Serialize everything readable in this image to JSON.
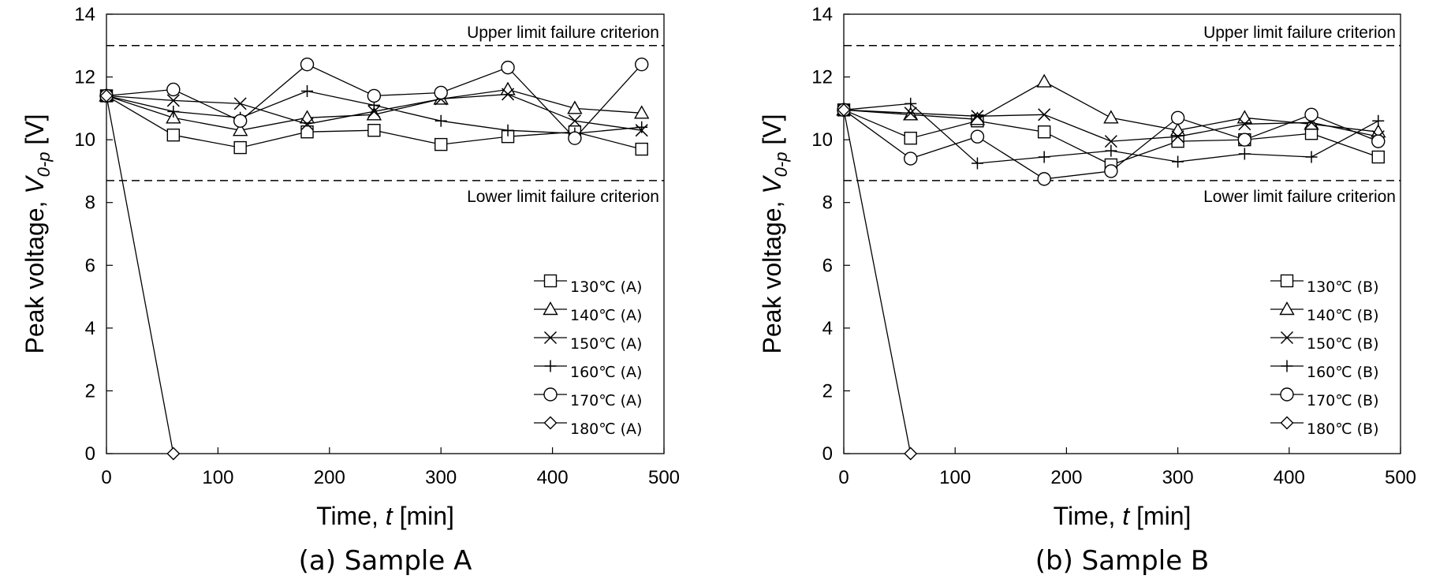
{
  "chart_data": [
    {
      "type": "line",
      "caption": "(a) Sample A",
      "xlabel_prefix": "Time, ",
      "xlabel_var": "t",
      "xlabel_suffix": " [min]",
      "ylabel_prefix": "Peak voltage, ",
      "ylabel_var": "V",
      "ylabel_sub": "0-p",
      "ylabel_suffix": " [V]",
      "xlim": [
        0,
        500
      ],
      "ylim": [
        0,
        14
      ],
      "xticks": [
        0,
        100,
        200,
        300,
        400,
        500
      ],
      "yticks": [
        0,
        2,
        4,
        6,
        8,
        10,
        12,
        14
      ],
      "legend_position": "bottom-right",
      "reference_lines": [
        {
          "y": 13.0,
          "label": "Upper limit failure criterion"
        },
        {
          "y": 8.7,
          "label": "Lower limit failure criterion"
        }
      ],
      "series": [
        {
          "name": "130℃ (A)",
          "marker": "square",
          "x": [
            0,
            60,
            120,
            180,
            240,
            300,
            360,
            420,
            480
          ],
          "y": [
            11.4,
            10.15,
            9.75,
            10.25,
            10.3,
            9.85,
            10.1,
            10.25,
            9.7
          ]
        },
        {
          "name": "140℃ (A)",
          "marker": "triangle",
          "x": [
            0,
            60,
            120,
            180,
            240,
            300,
            360,
            420,
            480
          ],
          "y": [
            11.4,
            10.7,
            10.3,
            10.7,
            10.8,
            11.3,
            11.6,
            11.0,
            10.85
          ]
        },
        {
          "name": "150℃ (A)",
          "marker": "x",
          "x": [
            0,
            60,
            120,
            180,
            240,
            300,
            360,
            420,
            480
          ],
          "y": [
            11.4,
            11.25,
            11.15,
            10.5,
            10.9,
            11.3,
            11.45,
            10.6,
            10.3
          ]
        },
        {
          "name": "160℃ (A)",
          "marker": "plus",
          "x": [
            0,
            60,
            120,
            180,
            240,
            300,
            360,
            420,
            480
          ],
          "y": [
            11.4,
            10.9,
            10.7,
            11.55,
            11.1,
            10.6,
            10.3,
            10.2,
            10.4
          ]
        },
        {
          "name": "170℃ (A)",
          "marker": "circle",
          "x": [
            0,
            60,
            120,
            180,
            240,
            300,
            360,
            420,
            480
          ],
          "y": [
            11.4,
            11.6,
            10.6,
            12.4,
            11.4,
            11.5,
            12.3,
            10.05,
            12.4
          ]
        },
        {
          "name": "180℃ (A)",
          "marker": "diamond",
          "x": [
            0,
            60
          ],
          "y": [
            11.4,
            0
          ]
        }
      ]
    },
    {
      "type": "line",
      "caption": "(b) Sample B",
      "xlabel_prefix": "Time, ",
      "xlabel_var": "t",
      "xlabel_suffix": " [min]",
      "ylabel_prefix": "Peak voltage, ",
      "ylabel_var": "V",
      "ylabel_sub": "0-p",
      "ylabel_suffix": " [V]",
      "xlim": [
        0,
        500
      ],
      "ylim": [
        0,
        14
      ],
      "xticks": [
        0,
        100,
        200,
        300,
        400,
        500
      ],
      "yticks": [
        0,
        2,
        4,
        6,
        8,
        10,
        12,
        14
      ],
      "legend_position": "bottom-right",
      "reference_lines": [
        {
          "y": 13.0,
          "label": "Upper limit failure criterion"
        },
        {
          "y": 8.7,
          "label": "Lower limit failure criterion"
        }
      ],
      "series": [
        {
          "name": "130℃ (B)",
          "marker": "square",
          "x": [
            0,
            60,
            120,
            180,
            240,
            300,
            360,
            420,
            480
          ],
          "y": [
            10.95,
            10.05,
            10.6,
            10.25,
            9.2,
            9.95,
            10.0,
            10.2,
            9.45
          ]
        },
        {
          "name": "140℃ (B)",
          "marker": "triangle",
          "x": [
            0,
            60,
            120,
            180,
            240,
            300,
            360,
            420,
            480
          ],
          "y": [
            10.95,
            10.8,
            10.65,
            11.85,
            10.7,
            10.3,
            10.7,
            10.5,
            10.25
          ]
        },
        {
          "name": "150℃ (B)",
          "marker": "x",
          "x": [
            0,
            60,
            120,
            180,
            240,
            300,
            360,
            420,
            480
          ],
          "y": [
            10.95,
            10.85,
            10.75,
            10.8,
            9.95,
            10.1,
            10.5,
            10.55,
            10.1
          ]
        },
        {
          "name": "160℃ (B)",
          "marker": "plus",
          "x": [
            0,
            60,
            120,
            180,
            240,
            300,
            360,
            420,
            480
          ],
          "y": [
            10.95,
            11.15,
            9.25,
            9.45,
            9.65,
            9.3,
            9.55,
            9.45,
            10.6
          ]
        },
        {
          "name": "170℃ (B)",
          "marker": "circle",
          "x": [
            0,
            60,
            120,
            180,
            240,
            300,
            360,
            420,
            480
          ],
          "y": [
            10.95,
            9.4,
            10.1,
            8.75,
            9.0,
            10.7,
            10.0,
            10.8,
            9.95
          ]
        },
        {
          "name": "180℃ (B)",
          "marker": "diamond",
          "x": [
            0,
            60
          ],
          "y": [
            10.95,
            0
          ]
        }
      ]
    }
  ]
}
